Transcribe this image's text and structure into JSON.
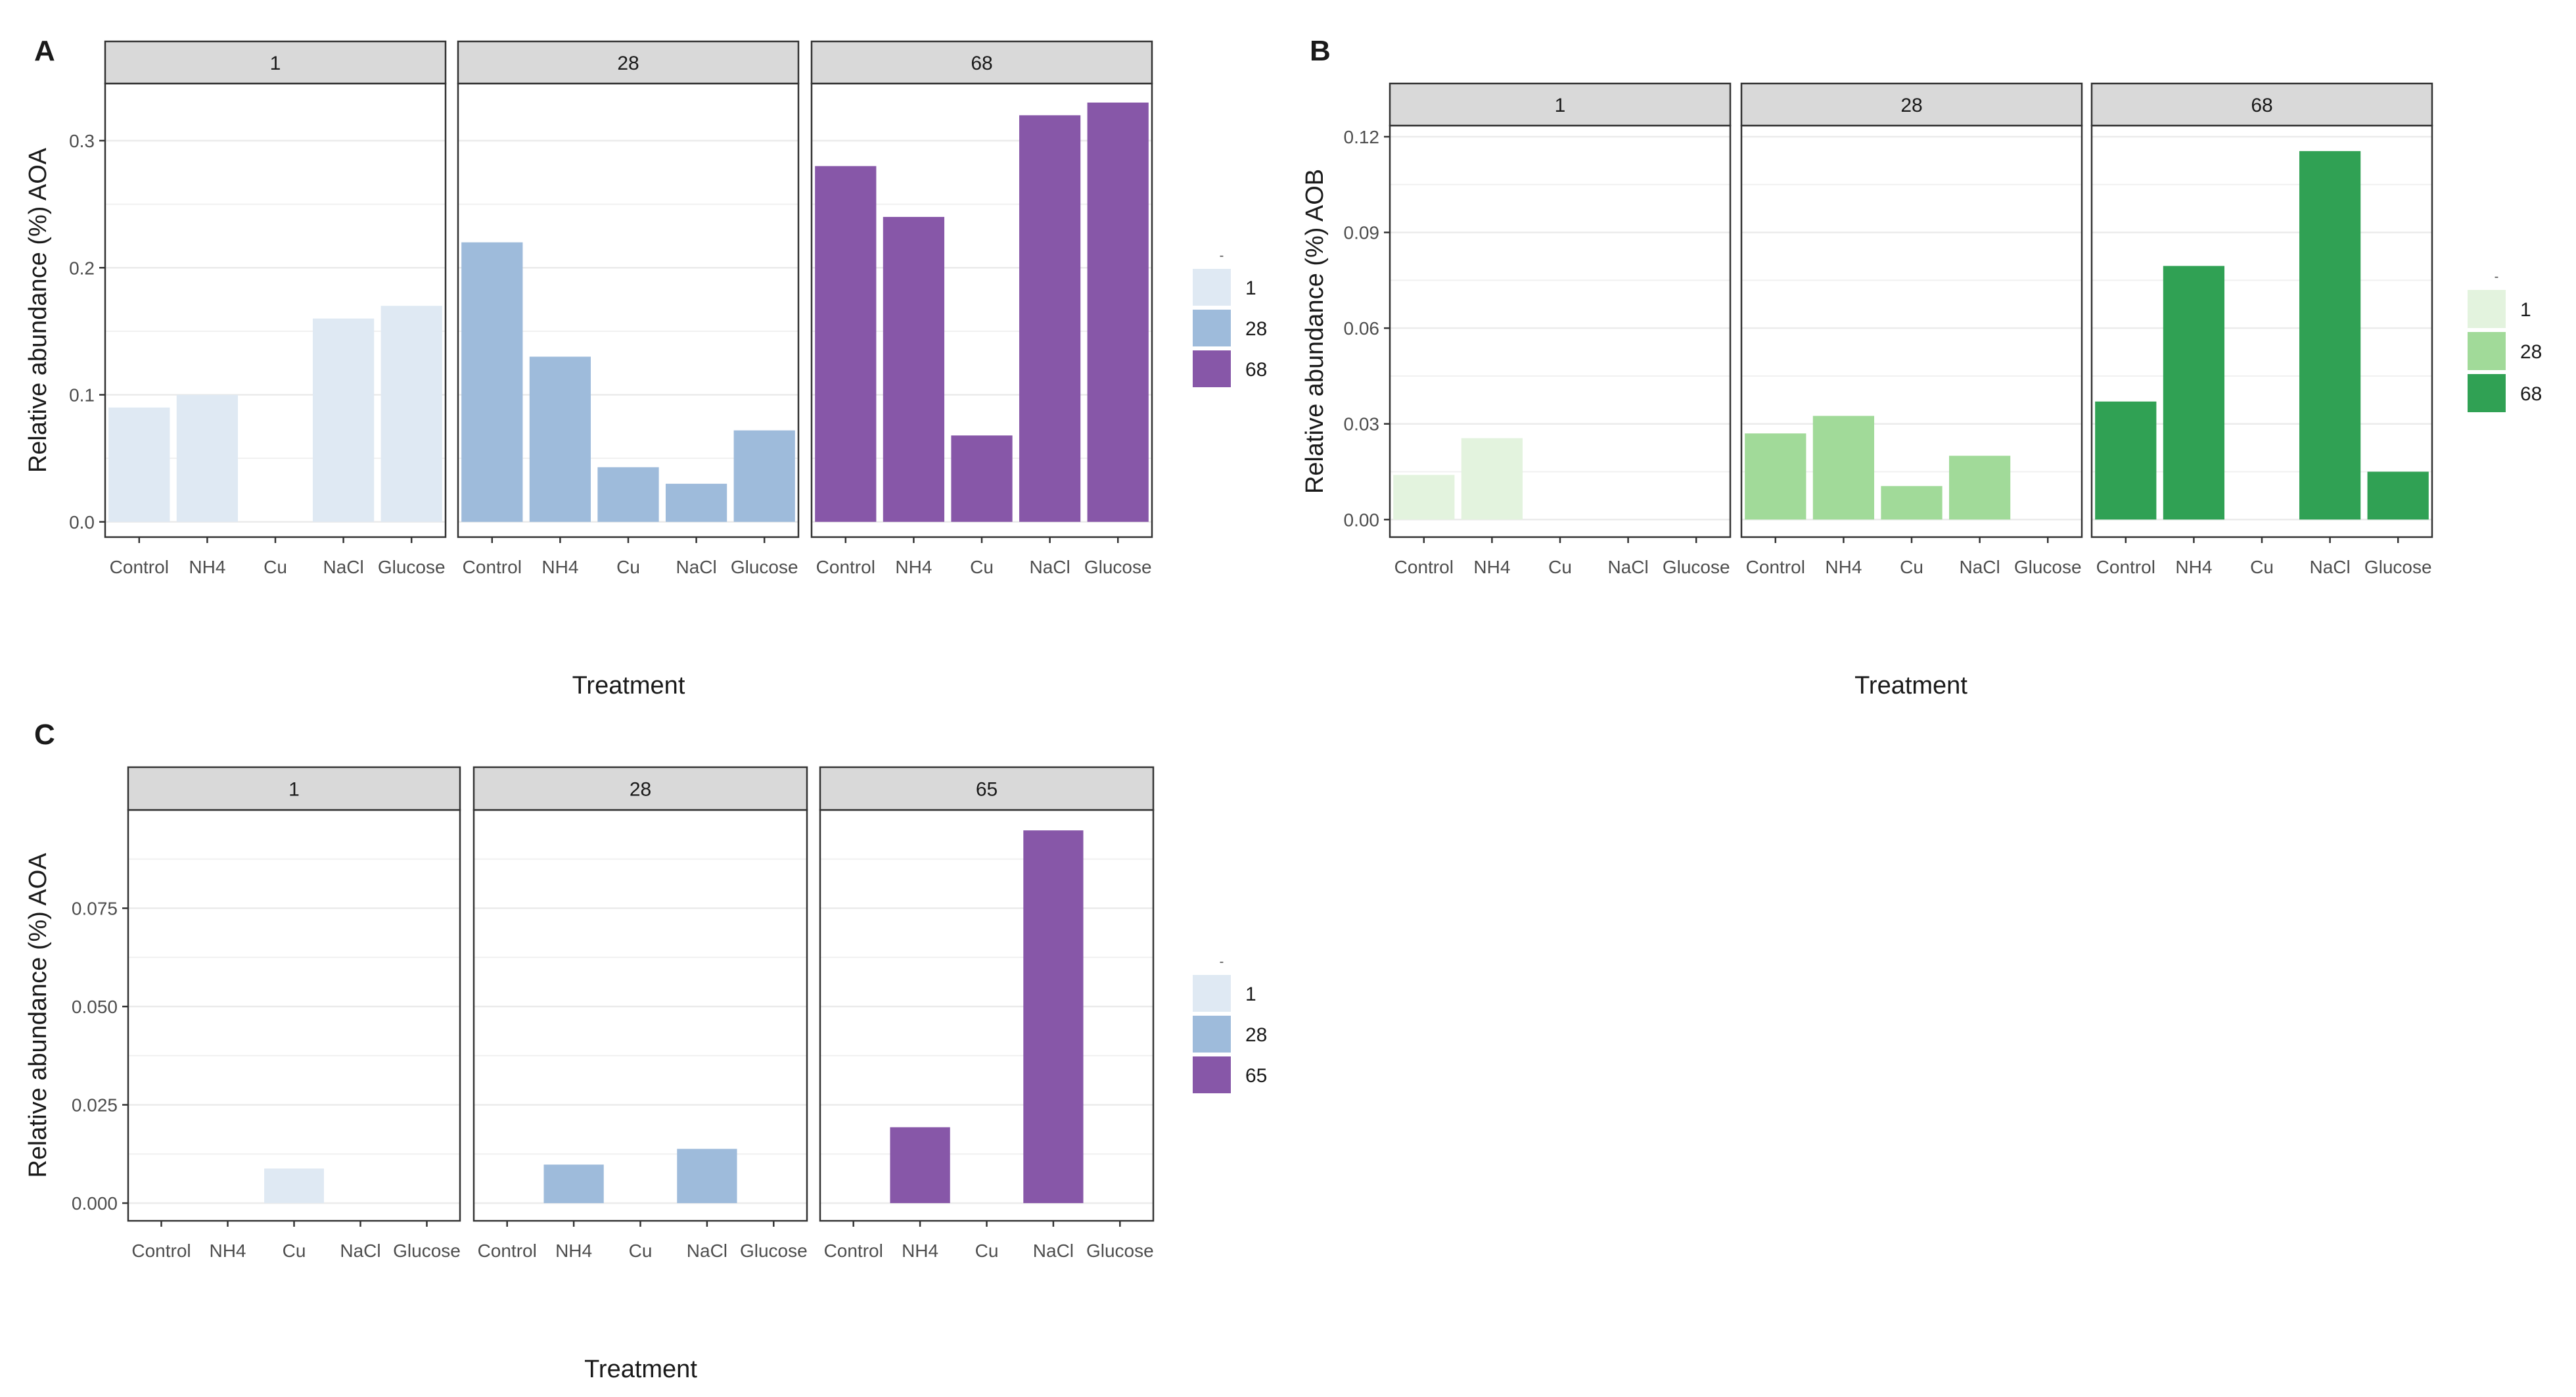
{
  "chart_data": [
    {
      "panel": "A",
      "type": "bar",
      "facet_by": "day",
      "categories": [
        "Control",
        "NH4",
        "Cu",
        "NaCl",
        "Glucose"
      ],
      "facets": [
        {
          "label": "1",
          "color": "#dfe9f3",
          "values": [
            0.09,
            0.1,
            null,
            0.16,
            0.17
          ]
        },
        {
          "label": "28",
          "color": "#9ebbdb",
          "values": [
            0.22,
            0.13,
            0.043,
            0.03,
            0.072
          ]
        },
        {
          "label": "68",
          "color": "#8757a8",
          "values": [
            0.28,
            0.24,
            0.068,
            0.32,
            0.33
          ]
        }
      ],
      "xlabel": "Treatment",
      "ylabel": "Relative abundance (%) AOA",
      "ylim": [
        -0.012,
        0.345
      ],
      "yticks": [
        0.0,
        0.1,
        0.2,
        0.3
      ],
      "ytick_labels": [
        "0.0",
        "0.1",
        "0.2",
        "0.3"
      ],
      "legend": {
        "title": "-",
        "entries": [
          "1",
          "28",
          "68"
        ],
        "position": "right"
      }
    },
    {
      "panel": "B",
      "type": "bar",
      "facet_by": "day",
      "categories": [
        "Control",
        "NH4",
        "Cu",
        "NaCl",
        "Glucose"
      ],
      "facets": [
        {
          "label": "1",
          "color": "#e3f3de",
          "values": [
            0.014,
            0.0255,
            null,
            null,
            null
          ]
        },
        {
          "label": "28",
          "color": "#a1da99",
          "values": [
            0.027,
            0.0325,
            0.0105,
            0.02,
            null
          ]
        },
        {
          "label": "68",
          "color": "#30a154",
          "values": [
            0.037,
            0.0795,
            null,
            0.1155,
            0.015
          ]
        }
      ],
      "xlabel": "Treatment",
      "ylabel": "Relative abundance (%) AOB",
      "ylim": [
        -0.0055,
        0.1235
      ],
      "yticks": [
        0.0,
        0.03,
        0.06,
        0.09,
        0.12
      ],
      "ytick_labels": [
        "0.00",
        "0.03",
        "0.06",
        "0.09",
        "0.12"
      ],
      "legend": {
        "title": "-",
        "entries": [
          "1",
          "28",
          "68"
        ],
        "position": "right"
      }
    },
    {
      "panel": "C",
      "type": "bar",
      "facet_by": "day",
      "categories": [
        "Control",
        "NH4",
        "Cu",
        "NaCl",
        "Glucose"
      ],
      "facets": [
        {
          "label": "1",
          "color": "#dfe9f3",
          "values": [
            null,
            null,
            0.0088,
            null,
            null
          ]
        },
        {
          "label": "28",
          "color": "#9ebbdb",
          "values": [
            null,
            0.0098,
            null,
            0.0138,
            null
          ]
        },
        {
          "label": "65",
          "color": "#8757a8",
          "values": [
            null,
            0.0193,
            null,
            0.0948,
            null
          ]
        }
      ],
      "xlabel": "Treatment",
      "ylabel": "Relative abundance (%) AOA",
      "ylim": [
        -0.0045,
        0.1
      ],
      "yticks": [
        0.0,
        0.025,
        0.05,
        0.075
      ],
      "ytick_labels": [
        "0.000",
        "0.025",
        "0.050",
        "0.075"
      ],
      "legend": {
        "title": "-",
        "entries": [
          "1",
          "28",
          "65"
        ],
        "position": "right"
      }
    }
  ]
}
